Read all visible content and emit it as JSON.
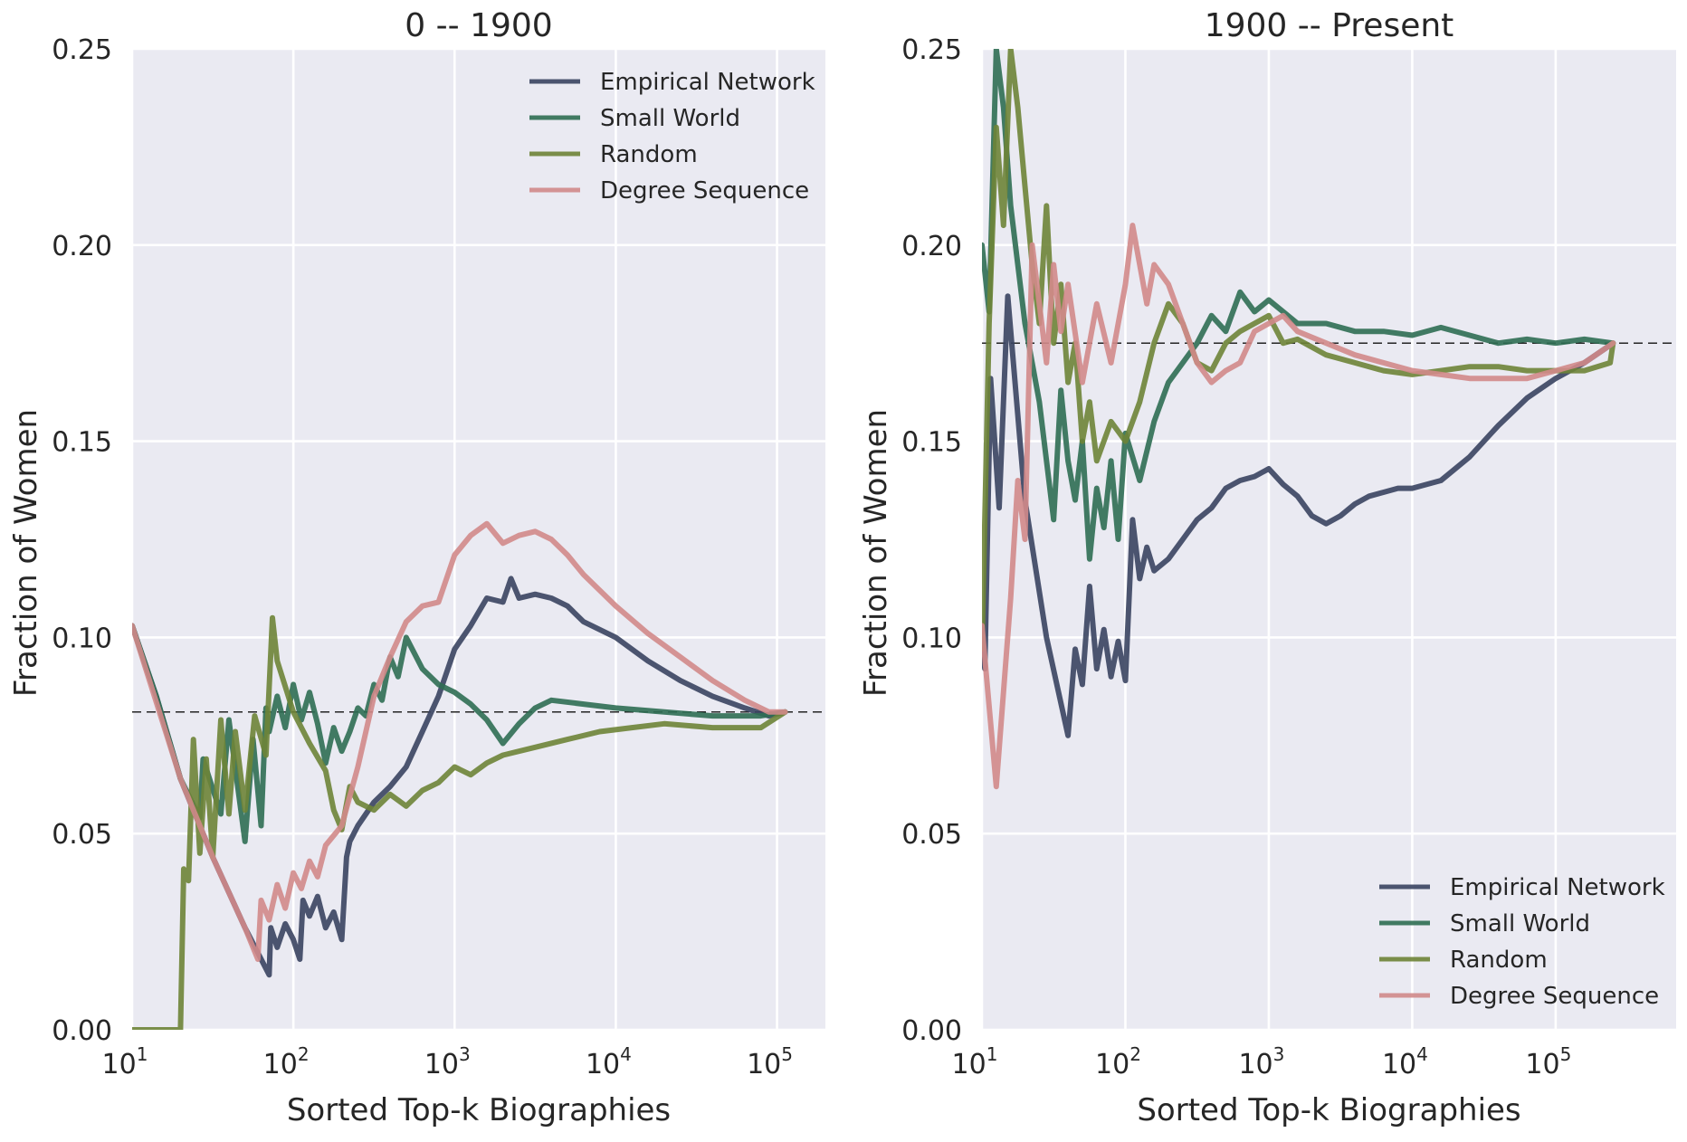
{
  "chart_data": [
    {
      "type": "line",
      "title": "0 -- 1900",
      "xlabel": "Sorted Top-k Biographies",
      "ylabel": "Fraction of Women",
      "xscale": "log",
      "xlim_log10": [
        1,
        5.3
      ],
      "ylim": [
        0,
        0.25
      ],
      "yticks": [
        "0.00",
        "0.05",
        "0.10",
        "0.15",
        "0.20",
        "0.25"
      ],
      "xticks": [
        {
          "base": "10",
          "exp": "1"
        },
        {
          "base": "10",
          "exp": "2"
        },
        {
          "base": "10",
          "exp": "3"
        },
        {
          "base": "10",
          "exp": "4"
        },
        {
          "base": "10",
          "exp": "5"
        }
      ],
      "grid": true,
      "legend_position": "top-right",
      "reference_line": 0.081,
      "series": [
        {
          "name": "Empirical Network",
          "color": "#3A4461",
          "log10_x": [
            1.0,
            1.15,
            1.3,
            1.5,
            1.7,
            1.85,
            1.86,
            1.9,
            1.95,
            2.0,
            2.04,
            2.06,
            2.1,
            2.15,
            2.2,
            2.25,
            2.3,
            2.33,
            2.35,
            2.4,
            2.45,
            2.5,
            2.6,
            2.7,
            2.8,
            2.9,
            3.0,
            3.1,
            3.2,
            3.3,
            3.35,
            3.4,
            3.5,
            3.6,
            3.7,
            3.8,
            4.0,
            4.2,
            4.4,
            4.6,
            4.8,
            4.95,
            5.05
          ],
          "values": [
            0.103,
            0.085,
            0.064,
            0.044,
            0.026,
            0.014,
            0.026,
            0.021,
            0.027,
            0.023,
            0.018,
            0.033,
            0.029,
            0.034,
            0.026,
            0.03,
            0.023,
            0.044,
            0.048,
            0.052,
            0.055,
            0.058,
            0.062,
            0.067,
            0.076,
            0.085,
            0.097,
            0.103,
            0.11,
            0.109,
            0.115,
            0.11,
            0.111,
            0.11,
            0.108,
            0.104,
            0.1,
            0.094,
            0.089,
            0.085,
            0.082,
            0.08,
            0.081
          ]
        },
        {
          "name": "Small World",
          "color": "#2F6E53",
          "log10_x": [
            1.0,
            1.15,
            1.3,
            1.42,
            1.44,
            1.55,
            1.6,
            1.7,
            1.75,
            1.8,
            1.83,
            1.85,
            1.9,
            1.95,
            2.0,
            2.05,
            2.1,
            2.15,
            2.2,
            2.25,
            2.3,
            2.35,
            2.4,
            2.45,
            2.5,
            2.55,
            2.6,
            2.65,
            2.7,
            2.8,
            2.9,
            3.0,
            3.1,
            3.2,
            3.3,
            3.4,
            3.5,
            3.6,
            3.8,
            4.0,
            4.3,
            4.6,
            4.9,
            5.05
          ],
          "values": [
            0.103,
            0.085,
            0.064,
            0.054,
            0.069,
            0.055,
            0.079,
            0.048,
            0.074,
            0.052,
            0.082,
            0.076,
            0.085,
            0.077,
            0.088,
            0.079,
            0.086,
            0.078,
            0.068,
            0.077,
            0.071,
            0.076,
            0.082,
            0.08,
            0.088,
            0.084,
            0.095,
            0.09,
            0.1,
            0.092,
            0.088,
            0.086,
            0.083,
            0.079,
            0.073,
            0.078,
            0.082,
            0.084,
            0.083,
            0.082,
            0.081,
            0.08,
            0.08,
            0.081
          ]
        },
        {
          "name": "Random",
          "color": "#6E8437",
          "log10_x": [
            1.0,
            1.3,
            1.32,
            1.35,
            1.38,
            1.42,
            1.46,
            1.5,
            1.55,
            1.6,
            1.64,
            1.7,
            1.76,
            1.83,
            1.87,
            1.9,
            2.0,
            2.1,
            2.2,
            2.25,
            2.3,
            2.35,
            2.4,
            2.5,
            2.6,
            2.7,
            2.8,
            2.9,
            3.0,
            3.1,
            3.2,
            3.3,
            3.5,
            3.7,
            3.9,
            4.1,
            4.3,
            4.6,
            4.9,
            5.05
          ],
          "values": [
            0.0,
            0.0,
            0.041,
            0.038,
            0.074,
            0.045,
            0.069,
            0.044,
            0.079,
            0.055,
            0.076,
            0.056,
            0.08,
            0.07,
            0.105,
            0.094,
            0.081,
            0.073,
            0.066,
            0.056,
            0.051,
            0.062,
            0.058,
            0.056,
            0.06,
            0.057,
            0.061,
            0.063,
            0.067,
            0.065,
            0.068,
            0.07,
            0.072,
            0.074,
            0.076,
            0.077,
            0.078,
            0.077,
            0.077,
            0.081
          ]
        },
        {
          "name": "Degree Sequence",
          "color": "#D18A8A",
          "log10_x": [
            1.0,
            1.3,
            1.5,
            1.7,
            1.78,
            1.8,
            1.85,
            1.9,
            1.95,
            2.0,
            2.05,
            2.1,
            2.15,
            2.2,
            2.3,
            2.4,
            2.5,
            2.6,
            2.7,
            2.8,
            2.9,
            3.0,
            3.1,
            3.2,
            3.3,
            3.4,
            3.5,
            3.6,
            3.7,
            3.8,
            4.0,
            4.2,
            4.4,
            4.6,
            4.8,
            4.95,
            5.05
          ],
          "values": [
            0.103,
            0.064,
            0.044,
            0.026,
            0.018,
            0.033,
            0.028,
            0.037,
            0.031,
            0.04,
            0.036,
            0.043,
            0.039,
            0.047,
            0.052,
            0.067,
            0.085,
            0.095,
            0.104,
            0.108,
            0.109,
            0.121,
            0.126,
            0.129,
            0.124,
            0.126,
            0.127,
            0.125,
            0.121,
            0.116,
            0.108,
            0.101,
            0.095,
            0.089,
            0.084,
            0.081,
            0.081
          ]
        }
      ]
    },
    {
      "type": "line",
      "title": "1900 -- Present",
      "xlabel": "Sorted Top-k Biographies",
      "ylabel": "Fraction of Women",
      "xscale": "log",
      "xlim_log10": [
        1,
        5.84
      ],
      "ylim": [
        0,
        0.25
      ],
      "yticks": [
        "0.00",
        "0.05",
        "0.10",
        "0.15",
        "0.20",
        "0.25"
      ],
      "xticks": [
        {
          "base": "10",
          "exp": "1"
        },
        {
          "base": "10",
          "exp": "2"
        },
        {
          "base": "10",
          "exp": "3"
        },
        {
          "base": "10",
          "exp": "4"
        },
        {
          "base": "10",
          "exp": "5"
        }
      ],
      "grid": true,
      "legend_position": "bottom-right",
      "reference_line": 0.175,
      "series": [
        {
          "name": "Empirical Network",
          "color": "#3A4461",
          "log10_x": [
            1.0,
            1.02,
            1.06,
            1.12,
            1.18,
            1.3,
            1.45,
            1.6,
            1.65,
            1.7,
            1.75,
            1.8,
            1.85,
            1.9,
            1.95,
            2.0,
            2.05,
            2.1,
            2.15,
            2.2,
            2.3,
            2.4,
            2.5,
            2.6,
            2.7,
            2.8,
            2.9,
            3.0,
            3.1,
            3.2,
            3.3,
            3.4,
            3.5,
            3.6,
            3.7,
            3.8,
            3.9,
            4.0,
            4.2,
            4.4,
            4.6,
            4.8,
            5.0,
            5.2,
            5.4
          ],
          "values": [
            0.097,
            0.092,
            0.166,
            0.133,
            0.187,
            0.135,
            0.1,
            0.075,
            0.097,
            0.088,
            0.113,
            0.092,
            0.102,
            0.09,
            0.099,
            0.089,
            0.13,
            0.115,
            0.123,
            0.117,
            0.12,
            0.125,
            0.13,
            0.133,
            0.138,
            0.14,
            0.141,
            0.143,
            0.139,
            0.136,
            0.131,
            0.129,
            0.131,
            0.134,
            0.136,
            0.137,
            0.138,
            0.138,
            0.14,
            0.146,
            0.154,
            0.161,
            0.166,
            0.17,
            0.175
          ]
        },
        {
          "name": "Small World",
          "color": "#2F6E53",
          "log10_x": [
            1.0,
            1.05,
            1.1,
            1.15,
            1.2,
            1.25,
            1.3,
            1.4,
            1.5,
            1.55,
            1.6,
            1.65,
            1.7,
            1.75,
            1.8,
            1.85,
            1.9,
            1.95,
            2.0,
            2.1,
            2.2,
            2.3,
            2.4,
            2.5,
            2.6,
            2.7,
            2.8,
            2.9,
            3.0,
            3.1,
            3.2,
            3.4,
            3.6,
            3.8,
            4.0,
            4.2,
            4.4,
            4.6,
            4.8,
            5.0,
            5.2,
            5.4
          ],
          "values": [
            0.2,
            0.183,
            0.25,
            0.235,
            0.21,
            0.195,
            0.18,
            0.16,
            0.13,
            0.163,
            0.145,
            0.135,
            0.15,
            0.12,
            0.138,
            0.128,
            0.145,
            0.125,
            0.152,
            0.14,
            0.155,
            0.165,
            0.17,
            0.175,
            0.182,
            0.178,
            0.188,
            0.183,
            0.186,
            0.183,
            0.18,
            0.18,
            0.178,
            0.178,
            0.177,
            0.179,
            0.177,
            0.175,
            0.176,
            0.175,
            0.176,
            0.175
          ]
        },
        {
          "name": "Random",
          "color": "#6E8437",
          "log10_x": [
            1.0,
            1.05,
            1.1,
            1.15,
            1.2,
            1.25,
            1.3,
            1.35,
            1.4,
            1.45,
            1.5,
            1.55,
            1.6,
            1.65,
            1.7,
            1.75,
            1.8,
            1.9,
            2.0,
            2.1,
            2.2,
            2.3,
            2.4,
            2.5,
            2.6,
            2.7,
            2.8,
            2.9,
            3.0,
            3.1,
            3.2,
            3.4,
            3.6,
            3.8,
            4.0,
            4.2,
            4.4,
            4.6,
            4.8,
            5.0,
            5.2,
            5.38,
            5.4
          ],
          "values": [
            0.097,
            0.18,
            0.23,
            0.205,
            0.25,
            0.235,
            0.215,
            0.195,
            0.18,
            0.21,
            0.175,
            0.19,
            0.165,
            0.175,
            0.15,
            0.16,
            0.145,
            0.155,
            0.15,
            0.16,
            0.175,
            0.185,
            0.18,
            0.17,
            0.168,
            0.175,
            0.178,
            0.18,
            0.182,
            0.175,
            0.176,
            0.172,
            0.17,
            0.168,
            0.167,
            0.168,
            0.169,
            0.169,
            0.168,
            0.168,
            0.168,
            0.17,
            0.175
          ]
        },
        {
          "name": "Degree Sequence",
          "color": "#D18A8A",
          "log10_x": [
            1.0,
            1.1,
            1.2,
            1.25,
            1.3,
            1.35,
            1.4,
            1.45,
            1.5,
            1.55,
            1.6,
            1.7,
            1.8,
            1.9,
            2.0,
            2.05,
            2.1,
            2.15,
            2.2,
            2.3,
            2.4,
            2.5,
            2.6,
            2.7,
            2.8,
            2.9,
            3.0,
            3.1,
            3.2,
            3.4,
            3.6,
            3.8,
            4.0,
            4.2,
            4.4,
            4.6,
            4.8,
            5.0,
            5.2,
            5.4
          ],
          "values": [
            0.103,
            0.062,
            0.11,
            0.14,
            0.125,
            0.2,
            0.185,
            0.17,
            0.195,
            0.178,
            0.19,
            0.165,
            0.185,
            0.17,
            0.19,
            0.205,
            0.195,
            0.185,
            0.195,
            0.19,
            0.18,
            0.17,
            0.165,
            0.168,
            0.17,
            0.178,
            0.18,
            0.182,
            0.178,
            0.175,
            0.172,
            0.17,
            0.168,
            0.167,
            0.166,
            0.166,
            0.166,
            0.168,
            0.17,
            0.175
          ]
        }
      ]
    }
  ]
}
